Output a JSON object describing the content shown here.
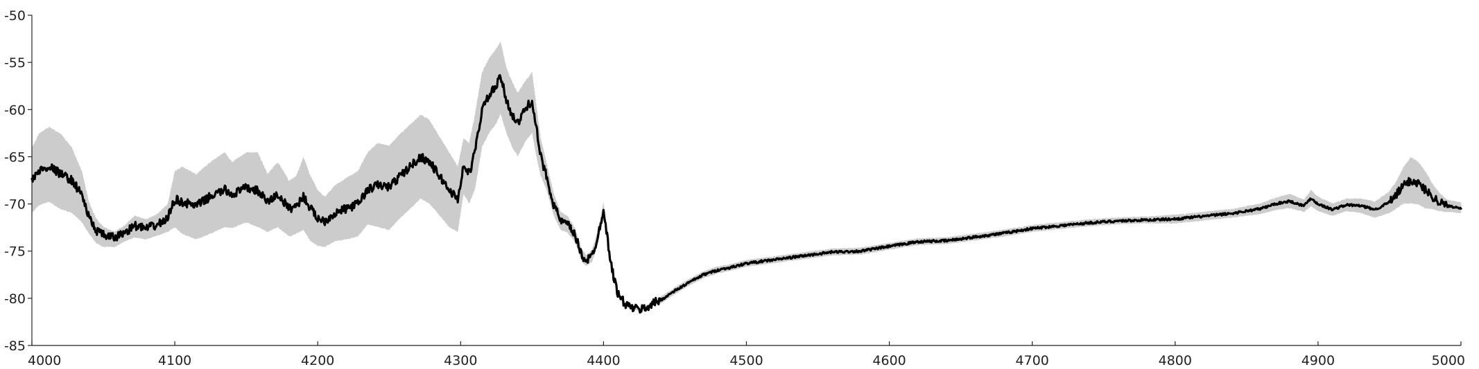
{
  "chart_data": {
    "type": "line",
    "title": "",
    "xlabel": "",
    "ylabel": "",
    "xlim": [
      4000,
      5000
    ],
    "ylim": [
      -85,
      -50
    ],
    "grid": false,
    "legend": "none",
    "x_ticks": [
      4000,
      4100,
      4200,
      4300,
      4400,
      4500,
      4600,
      4700,
      4800,
      4900,
      5000
    ],
    "x_tick_labels": [
      "4000",
      "4100",
      "4200",
      "4300",
      "4400",
      "4500",
      "4600",
      "4700",
      "4800",
      "4900",
      "5000"
    ],
    "y_ticks": [
      -50,
      -55,
      -60,
      -65,
      -70,
      -75,
      -80,
      -85
    ],
    "y_tick_labels": [
      "-50",
      "-55",
      "-60",
      "-65",
      "-70",
      "-75",
      "-80",
      "-85"
    ],
    "series": [
      {
        "name": "mean",
        "color": "#000000",
        "x": [
          4000,
          4005,
          4012,
          4020,
          4028,
          4035,
          4040,
          4045,
          4050,
          4058,
          4065,
          4072,
          4080,
          4088,
          4095,
          4100,
          4105,
          4115,
          4125,
          4135,
          4140,
          4150,
          4158,
          4165,
          4172,
          4180,
          4185,
          4190,
          4195,
          4200,
          4205,
          4212,
          4220,
          4228,
          4235,
          4242,
          4250,
          4258,
          4265,
          4272,
          4278,
          4285,
          4292,
          4298,
          4302,
          4306,
          4310,
          4315,
          4320,
          4325,
          4328,
          4332,
          4336,
          4340,
          4345,
          4350,
          4353,
          4356,
          4360,
          4365,
          4370,
          4375,
          4380,
          4385,
          4388,
          4392,
          4396,
          4400,
          4403,
          4406,
          4410,
          4415,
          4420,
          4425,
          4430,
          4435,
          4440,
          4450,
          4460,
          4470,
          4480,
          4490,
          4500,
          4520,
          4540,
          4560,
          4580,
          4600,
          4620,
          4640,
          4660,
          4680,
          4700,
          4720,
          4740,
          4760,
          4780,
          4800,
          4820,
          4840,
          4860,
          4870,
          4880,
          4890,
          4895,
          4900,
          4910,
          4920,
          4930,
          4940,
          4950,
          4955,
          4960,
          4965,
          4970,
          4975,
          4980,
          4985,
          4990,
          5000
        ],
        "y": [
          -67.5,
          -66.5,
          -66.0,
          -66.8,
          -67.5,
          -69.0,
          -71.5,
          -72.8,
          -73.3,
          -73.6,
          -73.0,
          -72.3,
          -72.6,
          -72.2,
          -71.5,
          -69.5,
          -69.8,
          -70.2,
          -69.2,
          -68.5,
          -69.0,
          -68.3,
          -68.6,
          -69.8,
          -69.0,
          -70.5,
          -70.2,
          -69.2,
          -70.5,
          -71.5,
          -71.8,
          -71.0,
          -70.5,
          -70.0,
          -68.5,
          -68.0,
          -68.2,
          -67.0,
          -66.0,
          -65.0,
          -65.5,
          -67.0,
          -68.5,
          -69.5,
          -66.0,
          -66.8,
          -64.5,
          -60.0,
          -58.5,
          -57.5,
          -56.5,
          -59.0,
          -60.5,
          -61.5,
          -60.0,
          -59.0,
          -62.0,
          -65.0,
          -67.0,
          -70.0,
          -71.8,
          -72.2,
          -73.3,
          -75.5,
          -76.0,
          -75.5,
          -73.5,
          -70.5,
          -74.0,
          -77.0,
          -79.5,
          -80.6,
          -81.0,
          -81.2,
          -81.0,
          -80.5,
          -80.2,
          -79.2,
          -78.3,
          -77.5,
          -77.0,
          -76.7,
          -76.3,
          -75.9,
          -75.5,
          -75.1,
          -75.0,
          -74.5,
          -74.0,
          -73.9,
          -73.5,
          -73.1,
          -72.6,
          -72.3,
          -72.0,
          -71.8,
          -71.7,
          -71.6,
          -71.3,
          -71.0,
          -70.5,
          -70.0,
          -69.7,
          -70.2,
          -69.4,
          -70.0,
          -70.6,
          -70.1,
          -70.2,
          -70.6,
          -69.8,
          -69.0,
          -68.0,
          -67.5,
          -67.8,
          -68.5,
          -69.2,
          -69.8,
          -70.2,
          -70.4
        ]
      },
      {
        "name": "spread band",
        "color": "#cccccc",
        "x": [
          4000,
          4005,
          4012,
          4020,
          4028,
          4035,
          4040,
          4045,
          4050,
          4058,
          4065,
          4072,
          4080,
          4088,
          4095,
          4100,
          4105,
          4115,
          4125,
          4135,
          4140,
          4150,
          4158,
          4165,
          4172,
          4180,
          4185,
          4190,
          4195,
          4200,
          4205,
          4212,
          4220,
          4228,
          4235,
          4242,
          4250,
          4258,
          4265,
          4272,
          4278,
          4285,
          4292,
          4298,
          4302,
          4306,
          4310,
          4315,
          4320,
          4325,
          4328,
          4332,
          4336,
          4340,
          4345,
          4350,
          4353,
          4356,
          4360,
          4365,
          4370,
          4375,
          4380,
          4385,
          4388,
          4392,
          4396,
          4400,
          4403,
          4406,
          4410,
          4415,
          4420,
          4425,
          4430,
          4435,
          4440,
          4450,
          4460,
          4470,
          4480,
          4490,
          4500,
          4520,
          4540,
          4560,
          4580,
          4600,
          4620,
          4640,
          4660,
          4680,
          4700,
          4720,
          4740,
          4760,
          4780,
          4800,
          4820,
          4840,
          4860,
          4870,
          4880,
          4890,
          4895,
          4900,
          4910,
          4920,
          4930,
          4940,
          4950,
          4955,
          4960,
          4965,
          4970,
          4975,
          4980,
          4985,
          4990,
          5000
        ],
        "upper": [
          -64.0,
          -62.5,
          -61.8,
          -62.5,
          -64.0,
          -66.5,
          -69.8,
          -71.5,
          -72.4,
          -72.9,
          -72.2,
          -71.2,
          -71.6,
          -71.0,
          -70.0,
          -66.5,
          -66.0,
          -66.8,
          -65.5,
          -64.5,
          -65.5,
          -64.5,
          -64.5,
          -66.8,
          -65.5,
          -67.5,
          -67.0,
          -65.0,
          -67.0,
          -68.5,
          -69.2,
          -68.0,
          -67.2,
          -66.5,
          -64.5,
          -63.5,
          -63.8,
          -62.5,
          -61.5,
          -60.5,
          -61.0,
          -62.8,
          -64.5,
          -66.0,
          -63.0,
          -63.5,
          -60.5,
          -56.0,
          -54.5,
          -53.5,
          -52.8,
          -55.5,
          -57.0,
          -58.2,
          -57.0,
          -56.0,
          -59.5,
          -63.0,
          -65.5,
          -68.8,
          -70.8,
          -71.3,
          -72.5,
          -74.8,
          -75.4,
          -74.8,
          -72.8,
          -69.8,
          -73.5,
          -76.5,
          -79.2,
          -80.3,
          -80.8,
          -81.0,
          -80.8,
          -80.2,
          -79.8,
          -78.8,
          -77.9,
          -77.1,
          -76.6,
          -76.3,
          -75.9,
          -75.5,
          -75.1,
          -74.7,
          -74.6,
          -74.1,
          -73.6,
          -73.5,
          -73.1,
          -72.7,
          -72.2,
          -71.9,
          -71.6,
          -71.4,
          -71.3,
          -71.1,
          -70.8,
          -70.5,
          -69.9,
          -69.3,
          -68.9,
          -69.5,
          -68.5,
          -69.2,
          -69.9,
          -69.4,
          -69.4,
          -69.7,
          -68.6,
          -67.5,
          -66.0,
          -65.0,
          -65.5,
          -66.5,
          -67.8,
          -68.8,
          -69.5,
          -69.8
        ],
        "lower": [
          -71.0,
          -70.2,
          -69.8,
          -70.6,
          -71.0,
          -72.0,
          -73.2,
          -74.2,
          -74.6,
          -74.6,
          -74.0,
          -73.6,
          -73.8,
          -73.4,
          -73.0,
          -72.5,
          -73.2,
          -73.8,
          -73.2,
          -72.5,
          -72.6,
          -72.0,
          -72.5,
          -73.0,
          -72.5,
          -73.5,
          -73.2,
          -72.8,
          -74.0,
          -74.5,
          -74.6,
          -74.0,
          -73.8,
          -73.5,
          -72.2,
          -72.5,
          -72.8,
          -71.5,
          -70.5,
          -69.5,
          -70.0,
          -71.2,
          -72.5,
          -73.0,
          -69.0,
          -70.0,
          -68.5,
          -64.0,
          -62.5,
          -61.5,
          -60.5,
          -62.5,
          -64.0,
          -65.0,
          -63.5,
          -62.5,
          -65.0,
          -67.0,
          -68.5,
          -71.2,
          -72.8,
          -73.1,
          -74.1,
          -76.2,
          -76.6,
          -76.2,
          -74.2,
          -71.2,
          -74.5,
          -77.5,
          -79.8,
          -80.9,
          -81.2,
          -81.4,
          -81.2,
          -80.8,
          -80.6,
          -79.6,
          -78.7,
          -77.9,
          -77.4,
          -77.1,
          -76.7,
          -76.3,
          -75.9,
          -75.5,
          -75.4,
          -74.9,
          -74.4,
          -74.3,
          -73.9,
          -73.5,
          -73.0,
          -72.7,
          -72.4,
          -72.2,
          -72.1,
          -72.1,
          -71.8,
          -71.5,
          -71.1,
          -70.7,
          -70.5,
          -70.9,
          -70.3,
          -70.8,
          -71.3,
          -70.8,
          -71.0,
          -71.5,
          -71.0,
          -70.5,
          -70.0,
          -70.0,
          -70.1,
          -70.5,
          -70.6,
          -70.8,
          -70.9,
          -71.0
        ]
      }
    ]
  }
}
